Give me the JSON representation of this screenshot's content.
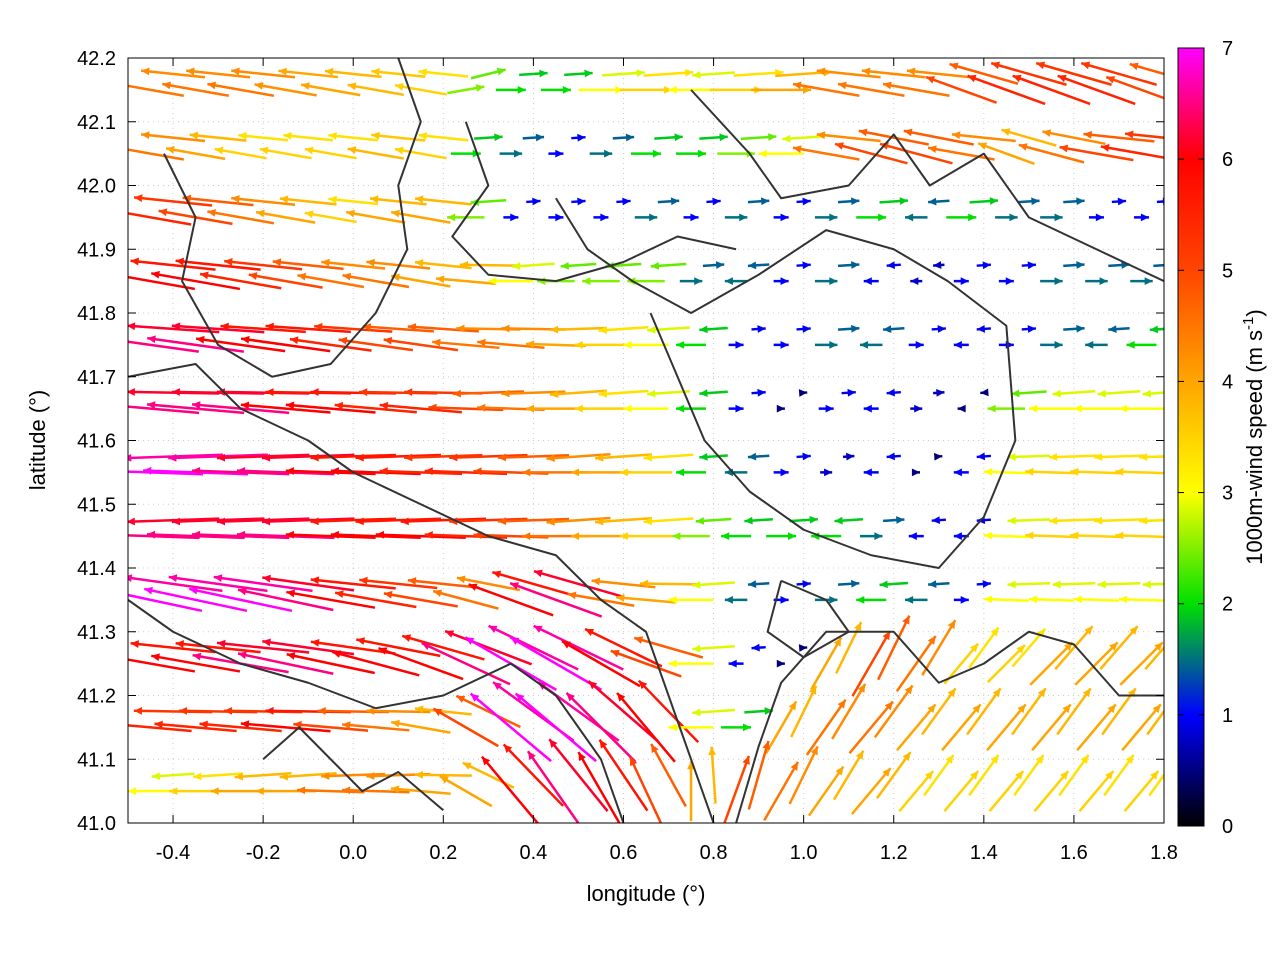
{
  "chart_data": {
    "type": "vector-field",
    "xlabel": "longitude (°)",
    "ylabel": "latitude (°)",
    "colorbar_label": "1000m-wind speed (m s",
    "colorbar_label_sup": "-1",
    "colorbar_label_end": ")",
    "xlim": [
      -0.5,
      1.8
    ],
    "ylim": [
      41.0,
      42.2
    ],
    "clim": [
      0,
      7
    ],
    "xticks": [
      "-0.4",
      "-0.2",
      "0.0",
      "0.2",
      "0.4",
      "0.6",
      "0.8",
      "1.0",
      "1.2",
      "1.4",
      "1.6",
      "1.8"
    ],
    "yticks": [
      "41.0",
      "41.1",
      "41.2",
      "41.3",
      "41.4",
      "41.5",
      "41.6",
      "41.7",
      "41.8",
      "41.9",
      "42.0",
      "42.1",
      "42.2"
    ],
    "cticks": [
      "0",
      "1",
      "2",
      "3",
      "4",
      "5",
      "6",
      "7"
    ],
    "colormap": [
      "#000000",
      "#0000ff",
      "#00e000",
      "#ffff00",
      "#ffa500",
      "#ff4500",
      "#ff0000",
      "#ff00ff"
    ],
    "contour_color": "#333333",
    "grid": true,
    "vector_lons": [
      -0.45,
      -0.35,
      -0.25,
      -0.15,
      -0.05,
      0.05,
      0.15,
      0.25,
      0.35,
      0.45,
      0.55,
      0.65,
      0.75,
      0.85,
      0.95,
      1.05,
      1.15,
      1.25,
      1.35,
      1.45,
      1.55,
      1.65,
      1.75
    ],
    "vector_rows": [
      {
        "lat": 42.15,
        "speed": [
          4.5,
          4.5,
          4.5,
          4.2,
          4,
          3.8,
          3.5,
          2.5,
          2,
          2,
          3,
          3.5,
          3,
          3.5,
          4,
          4.5,
          4.5,
          4.5,
          5,
          5.5,
          5.5,
          5.5,
          5
        ],
        "dir": [
          170,
          170,
          170,
          170,
          170,
          170,
          170,
          10,
          0,
          0,
          0,
          0,
          180,
          0,
          0,
          170,
          170,
          170,
          160,
          160,
          160,
          160,
          160
        ]
      },
      {
        "lat": 42.05,
        "speed": [
          4.5,
          4,
          3.5,
          3.5,
          3.5,
          3.8,
          3.5,
          2,
          1.5,
          1,
          1.5,
          2,
          2,
          2.5,
          3,
          4.5,
          5,
          5,
          4.5,
          4,
          4.5,
          5,
          5.5
        ],
        "dir": [
          170,
          170,
          170,
          170,
          170,
          170,
          170,
          0,
          0,
          0,
          0,
          0,
          0,
          0,
          180,
          170,
          165,
          165,
          170,
          160,
          165,
          170,
          170
        ]
      },
      {
        "lat": 41.95,
        "speed": [
          5.5,
          5,
          4.5,
          4,
          3.5,
          4,
          4,
          2.5,
          1,
          1,
          1,
          1.5,
          1,
          1.5,
          1,
          1.5,
          2,
          1.5,
          2,
          1.5,
          1.5,
          1,
          1
        ],
        "dir": [
          170,
          170,
          170,
          170,
          170,
          170,
          170,
          180,
          0,
          0,
          0,
          0,
          0,
          0,
          0,
          0,
          0,
          180,
          0,
          0,
          0,
          0,
          0
        ]
      },
      {
        "lat": 41.85,
        "speed": [
          6,
          6,
          5.5,
          5,
          4.5,
          4.5,
          4,
          4,
          3,
          2.5,
          2.5,
          2.5,
          1.5,
          1.5,
          1,
          1.5,
          1,
          0.8,
          1,
          1,
          1.5,
          1.5,
          1.5
        ],
        "dir": [
          170,
          170,
          170,
          170,
          170,
          170,
          170,
          175,
          180,
          180,
          180,
          180,
          0,
          180,
          0,
          0,
          180,
          180,
          0,
          0,
          0,
          0,
          0
        ]
      },
      {
        "lat": 41.75,
        "speed": [
          6.5,
          6.5,
          6,
          6,
          5.5,
          5,
          5,
          4.5,
          4.5,
          4,
          3.5,
          3,
          2,
          1,
          1,
          1.5,
          1.5,
          1,
          1,
          1,
          1.5,
          1.5,
          2
        ],
        "dir": [
          172,
          172,
          172,
          172,
          172,
          172,
          172,
          175,
          175,
          178,
          180,
          180,
          180,
          0,
          0,
          0,
          180,
          0,
          180,
          0,
          0,
          180,
          180
        ]
      },
      {
        "lat": 41.65,
        "speed": [
          6.5,
          6.5,
          6.5,
          6,
          6,
          5.5,
          5.5,
          5,
          4.5,
          4,
          3.5,
          3,
          2,
          1,
          0.5,
          1,
          1,
          0.8,
          0.5,
          2.5,
          3,
          3,
          3
        ],
        "dir": [
          175,
          175,
          175,
          175,
          175,
          175,
          175,
          178,
          178,
          180,
          180,
          180,
          180,
          0,
          0,
          0,
          180,
          0,
          180,
          180,
          180,
          180,
          180
        ]
      },
      {
        "lat": 41.55,
        "speed": [
          7,
          7,
          6.5,
          6.5,
          6,
          6,
          5.5,
          5.5,
          5,
          4.5,
          4,
          3.5,
          2,
          1.5,
          1,
          0.8,
          1,
          0.5,
          1,
          3,
          3.5,
          3.5,
          3.5
        ],
        "dir": [
          178,
          178,
          178,
          178,
          178,
          178,
          178,
          178,
          178,
          180,
          180,
          180,
          180,
          180,
          0,
          0,
          180,
          0,
          180,
          178,
          178,
          178,
          178
        ]
      },
      {
        "lat": 41.45,
        "speed": [
          6.5,
          6.5,
          6.5,
          6.5,
          6,
          6,
          6,
          5.5,
          5,
          4.5,
          4,
          3.5,
          2.5,
          2,
          2,
          2,
          1.5,
          1,
          1,
          3,
          3.5,
          3.5,
          3.5
        ],
        "dir": [
          178,
          178,
          178,
          178,
          178,
          178,
          178,
          178,
          178,
          180,
          180,
          180,
          180,
          180,
          0,
          180,
          0,
          180,
          180,
          178,
          178,
          178,
          178
        ]
      },
      {
        "lat": 41.35,
        "speed": [
          7,
          7,
          7,
          6.5,
          6,
          5.5,
          5,
          4.5,
          6,
          6.5,
          4.5,
          4,
          3,
          1.5,
          1,
          1.5,
          2,
          1.5,
          1,
          3,
          3,
          3,
          3
        ],
        "dir": [
          168,
          168,
          168,
          168,
          170,
          170,
          170,
          165,
          160,
          160,
          170,
          175,
          180,
          180,
          0,
          0,
          180,
          180,
          0,
          178,
          178,
          178,
          178
        ]
      },
      {
        "lat": 41.25,
        "speed": [
          6,
          6,
          6.5,
          6.5,
          6,
          6,
          6,
          6.5,
          7,
          7,
          6,
          5,
          3,
          1,
          0.5,
          4,
          5,
          4.5,
          3.5,
          3.5,
          4,
          4,
          4
        ],
        "dir": [
          170,
          170,
          170,
          168,
          168,
          165,
          160,
          155,
          150,
          150,
          150,
          160,
          180,
          180,
          0,
          60,
          60,
          55,
          50,
          45,
          45,
          45,
          45
        ]
      },
      {
        "lat": 41.15,
        "speed": [
          5.5,
          5.5,
          5.5,
          6,
          5,
          4.5,
          4,
          5,
          7,
          7,
          6.5,
          6,
          3,
          2,
          4,
          4.5,
          4.5,
          4,
          4,
          4,
          4,
          4,
          4
        ],
        "dir": [
          175,
          175,
          175,
          175,
          175,
          175,
          170,
          150,
          140,
          140,
          135,
          130,
          180,
          0,
          60,
          55,
          50,
          50,
          50,
          50,
          50,
          50,
          50
        ]
      },
      {
        "lat": 41.05,
        "speed": [
          3,
          3.5,
          4,
          4,
          4.5,
          4.5,
          4,
          4,
          6,
          6.5,
          6,
          5,
          4,
          5,
          4.5,
          4,
          4,
          3.5,
          3.5,
          3.5,
          3.5,
          3.5,
          3.5
        ],
        "dir": [
          180,
          180,
          180,
          180,
          178,
          178,
          175,
          150,
          130,
          125,
          120,
          115,
          90,
          70,
          60,
          55,
          50,
          50,
          50,
          50,
          50,
          50,
          50
        ]
      }
    ],
    "contours": [
      [
        [
          0.45,
          41.98
        ],
        [
          0.52,
          41.9
        ],
        [
          0.62,
          41.85
        ],
        [
          0.75,
          41.8
        ],
        [
          0.9,
          41.86
        ],
        [
          1.05,
          41.93
        ],
        [
          1.2,
          41.9
        ],
        [
          1.32,
          41.85
        ],
        [
          1.45,
          41.78
        ],
        [
          1.47,
          41.6
        ],
        [
          1.4,
          41.48
        ],
        [
          1.3,
          41.4
        ],
        [
          1.15,
          41.42
        ],
        [
          1.0,
          41.46
        ],
        [
          0.88,
          41.52
        ],
        [
          0.78,
          41.6
        ],
        [
          0.72,
          41.7
        ],
        [
          0.66,
          41.8
        ]
      ],
      [
        [
          0.25,
          42.1
        ],
        [
          0.3,
          42.0
        ],
        [
          0.22,
          41.92
        ],
        [
          0.3,
          41.86
        ],
        [
          0.45,
          41.85
        ],
        [
          0.6,
          41.88
        ],
        [
          0.72,
          41.92
        ],
        [
          0.85,
          41.9
        ]
      ],
      [
        [
          0.75,
          42.15
        ],
        [
          0.88,
          42.05
        ],
        [
          0.95,
          41.98
        ],
        [
          1.1,
          42.0
        ],
        [
          1.2,
          42.08
        ],
        [
          1.28,
          42.0
        ],
        [
          1.4,
          42.05
        ],
        [
          1.5,
          41.95
        ],
        [
          1.65,
          41.9
        ],
        [
          1.8,
          41.85
        ]
      ],
      [
        [
          -0.5,
          41.7
        ],
        [
          -0.35,
          41.72
        ],
        [
          -0.25,
          41.65
        ],
        [
          -0.1,
          41.6
        ],
        [
          0.0,
          41.55
        ],
        [
          0.15,
          41.5
        ],
        [
          0.3,
          41.45
        ],
        [
          0.45,
          41.42
        ],
        [
          0.55,
          41.35
        ],
        [
          0.65,
          41.3
        ],
        [
          0.7,
          41.2
        ],
        [
          0.75,
          41.1
        ],
        [
          0.8,
          41.0
        ]
      ],
      [
        [
          -0.5,
          41.35
        ],
        [
          -0.4,
          41.3
        ],
        [
          -0.25,
          41.25
        ],
        [
          -0.1,
          41.22
        ],
        [
          0.05,
          41.18
        ],
        [
          0.2,
          41.2
        ],
        [
          0.35,
          41.25
        ],
        [
          0.45,
          41.2
        ],
        [
          0.55,
          41.1
        ],
        [
          0.6,
          41.0
        ]
      ],
      [
        [
          -0.42,
          42.05
        ],
        [
          -0.35,
          41.95
        ],
        [
          -0.38,
          41.85
        ],
        [
          -0.3,
          41.75
        ],
        [
          -0.18,
          41.7
        ],
        [
          -0.05,
          41.72
        ],
        [
          0.05,
          41.8
        ],
        [
          0.12,
          41.9
        ],
        [
          0.1,
          42.0
        ],
        [
          0.15,
          42.1
        ],
        [
          0.1,
          42.2
        ]
      ],
      [
        [
          0.85,
          41.0
        ],
        [
          0.9,
          41.12
        ],
        [
          0.95,
          41.22
        ],
        [
          1.05,
          41.3
        ],
        [
          1.2,
          41.3
        ],
        [
          1.3,
          41.22
        ],
        [
          1.4,
          41.25
        ],
        [
          1.5,
          41.3
        ],
        [
          1.6,
          41.28
        ],
        [
          1.7,
          41.2
        ],
        [
          1.8,
          41.2
        ]
      ],
      [
        [
          0.95,
          41.38
        ],
        [
          1.05,
          41.35
        ],
        [
          1.1,
          41.3
        ],
        [
          1.0,
          41.26
        ],
        [
          0.92,
          41.3
        ],
        [
          0.95,
          41.38
        ]
      ],
      [
        [
          -0.2,
          41.1
        ],
        [
          -0.12,
          41.15
        ],
        [
          -0.05,
          41.1
        ],
        [
          0.02,
          41.05
        ],
        [
          0.1,
          41.08
        ],
        [
          0.2,
          41.02
        ]
      ]
    ]
  }
}
